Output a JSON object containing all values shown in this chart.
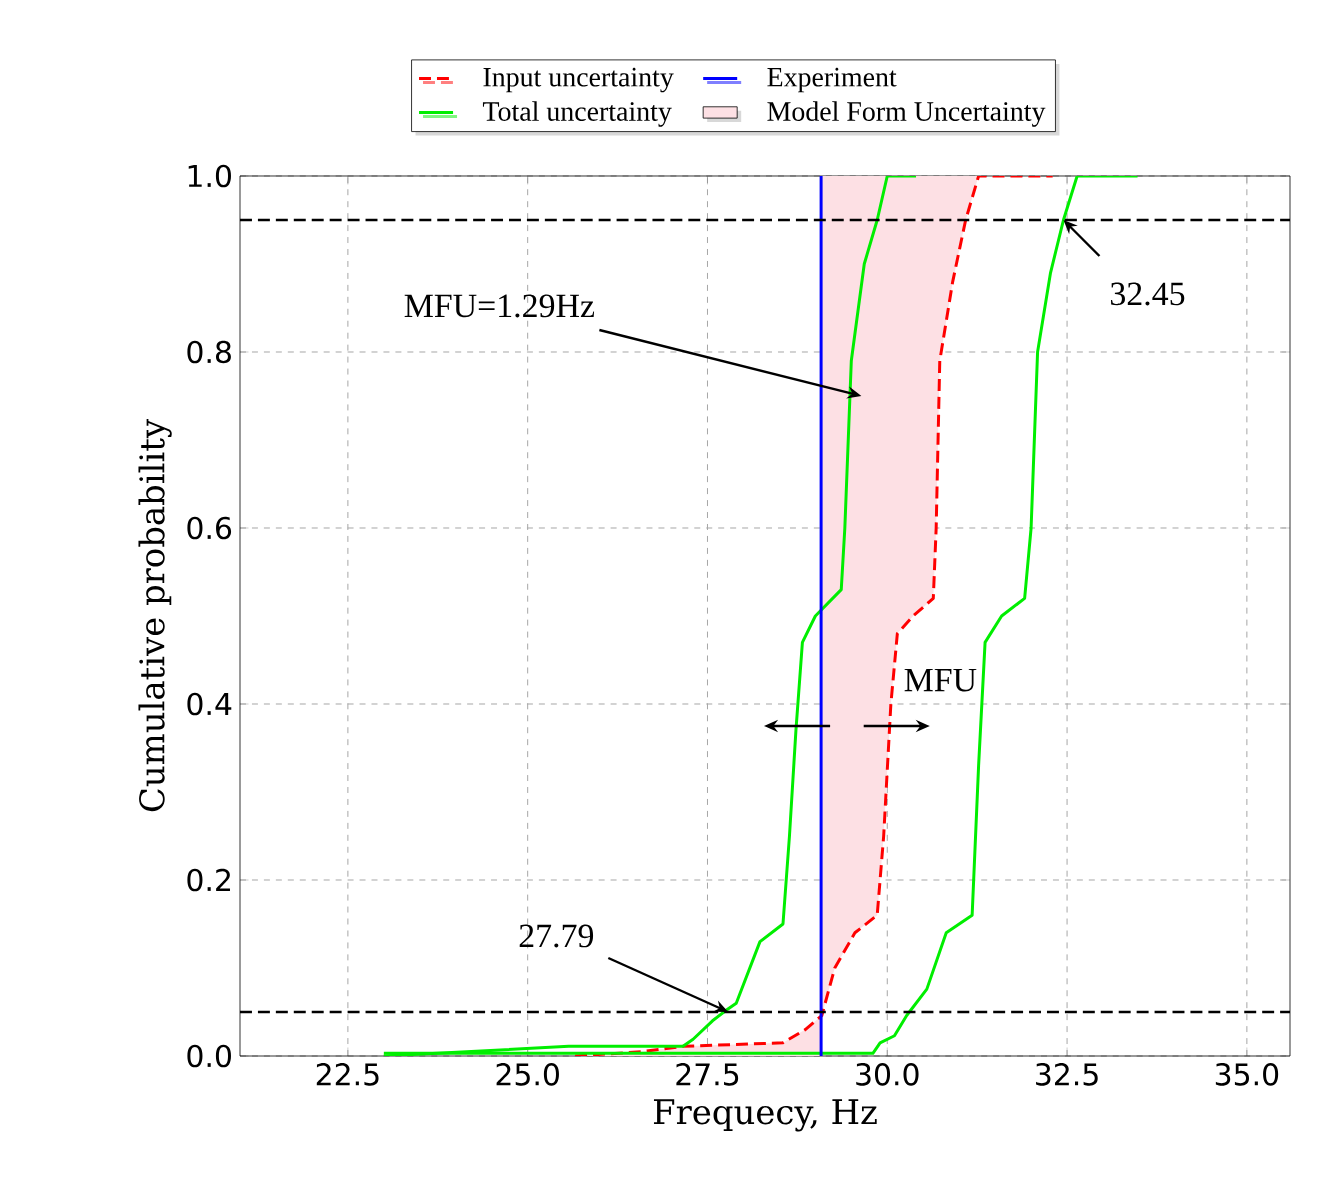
{
  "chart_data": {
    "type": "line",
    "xlabel": "Frequecy, Hz",
    "ylabel": "Cumulative probability",
    "xlim": [
      21,
      35.6
    ],
    "ylim": [
      0,
      1
    ],
    "xticks": [
      {
        "value": 22.5,
        "label": "22.5"
      },
      {
        "value": 25,
        "label": "25.0"
      },
      {
        "value": 27.5,
        "label": "27.5"
      },
      {
        "value": 30,
        "label": "30.0"
      },
      {
        "value": 32.5,
        "label": "32.5"
      },
      {
        "value": 35,
        "label": "35.0"
      }
    ],
    "yticks": [
      {
        "value": 0,
        "label": "0.0"
      },
      {
        "value": 0.2,
        "label": "0.2"
      },
      {
        "value": 0.4,
        "label": "0.4"
      },
      {
        "value": 0.6,
        "label": "0.6"
      },
      {
        "value": 0.8,
        "label": "0.8"
      },
      {
        "value": 1,
        "label": "1.0"
      }
    ],
    "grid": true,
    "legend": "top",
    "marker": "none",
    "series": [
      {
        "name": "Input uncertainty",
        "color": "#ff0000",
        "line_style": "dashed",
        "x": [
          25.66,
          26.6,
          27.16,
          28.55,
          28.86,
          29.09,
          29.27,
          29.55,
          29.86,
          29.95,
          30.05,
          30.14,
          30.36,
          30.64,
          30.68,
          30.73,
          30.91,
          31.09,
          31.27,
          32.3
        ],
        "values": [
          0,
          0.005,
          0.011,
          0.015,
          0.03,
          0.046,
          0.1,
          0.14,
          0.16,
          0.25,
          0.4,
          0.48,
          0.5,
          0.52,
          0.6,
          0.79,
          0.88,
          0.95,
          1,
          1
        ]
      },
      {
        "name": "Total uncertainty",
        "color": "#00ee00",
        "line_style": "solid",
        "x": [
          23.0,
          25.57,
          27.16,
          27.3,
          27.57,
          27.76,
          27.9,
          28.23,
          28.55,
          28.64,
          28.73,
          28.82,
          29.0,
          29.36,
          29.41,
          29.5,
          29.68,
          29.86,
          30.0,
          30.4
        ],
        "values": [
          0,
          0.011,
          0.011,
          0.019,
          0.04,
          0.052,
          0.06,
          0.13,
          0.15,
          0.25,
          0.37,
          0.47,
          0.5,
          0.53,
          0.6,
          0.79,
          0.9,
          0.95,
          1,
          1
        ]
      },
      {
        "color": "#00ee00",
        "line_style": "solid",
        "x": [
          23.0,
          29.8,
          29.9,
          30.1,
          30.27,
          30.55,
          30.82,
          31.18,
          31.27,
          31.36,
          31.59,
          31.91,
          32.0,
          32.09,
          32.27,
          32.45,
          32.64,
          33.48
        ],
        "values": [
          0.003,
          0.003,
          0.015,
          0.023,
          0.046,
          0.076,
          0.14,
          0.16,
          0.33,
          0.47,
          0.5,
          0.52,
          0.6,
          0.8,
          0.89,
          0.95,
          1,
          1
        ]
      },
      {
        "name": "Model Form Uncertainty",
        "type": "area",
        "color": "#fde0e4",
        "x": [
          25.66,
          26.6,
          27.16,
          28.55,
          28.86,
          29.09,
          29.27,
          29.55,
          29.86,
          29.95,
          30.05,
          30.14,
          30.36,
          30.64,
          30.68,
          30.73,
          30.91,
          31.09,
          31.27,
          29.08,
          29.08
        ],
        "values": [
          0,
          0.005,
          0.011,
          0.015,
          0.03,
          0.046,
          0.1,
          0.14,
          0.16,
          0.25,
          0.4,
          0.48,
          0.5,
          0.52,
          0.6,
          0.79,
          0.88,
          0.95,
          1,
          1,
          0
        ]
      },
      {
        "name": "Experiment",
        "color": "#0000ff",
        "line_style": "solid",
        "x": [
          29.08,
          29.08
        ],
        "values": [
          0,
          1
        ]
      }
    ],
    "ref_lines": [
      {
        "axis": "y",
        "value": 0.95,
        "color": "#000000",
        "line_style": "dashed"
      },
      {
        "axis": "y",
        "value": 0.05,
        "color": "#000000",
        "line_style": "dashed"
      }
    ],
    "annotations": [
      {
        "text": "MFU=1.29Hz",
        "x": 29.64,
        "y": 0.75
      },
      {
        "text": "32.45",
        "x": 32.45,
        "y": 0.95
      },
      {
        "text": "27.79",
        "x": 27.79,
        "y": 0.05
      },
      "MFU"
    ]
  }
}
